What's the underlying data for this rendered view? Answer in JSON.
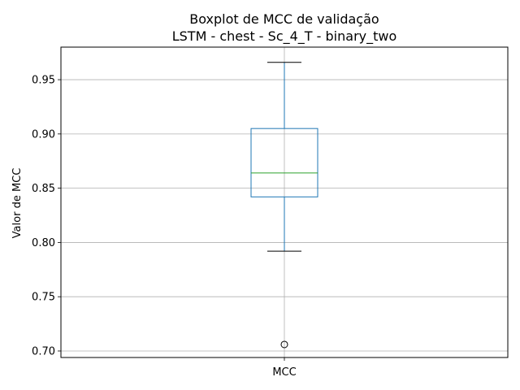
{
  "chart_data": {
    "type": "box",
    "title": "Boxplot de MCC de validação",
    "subtitle": "LSTM - chest - Sc_4_T - binary_two",
    "xlabel": "",
    "ylabel": "Valor de MCC",
    "categories": [
      "MCC"
    ],
    "boxes": [
      {
        "name": "MCC",
        "whisker_low": 0.792,
        "q1": 0.842,
        "median": 0.864,
        "q3": 0.905,
        "whisker_high": 0.966,
        "outliers": [
          0.706
        ]
      }
    ],
    "ylim": [
      0.694,
      0.98
    ],
    "yticks": [
      0.7,
      0.75,
      0.8,
      0.85,
      0.9,
      0.95
    ],
    "ytick_labels": [
      "0.70",
      "0.75",
      "0.80",
      "0.85",
      "0.90",
      "0.95"
    ],
    "grid": true,
    "colors": {
      "box": "#1f77b4",
      "median": "#2ca02c",
      "whisker_cap": "#000000",
      "grid": "#b0b0b0",
      "outlier": "#000000"
    }
  }
}
